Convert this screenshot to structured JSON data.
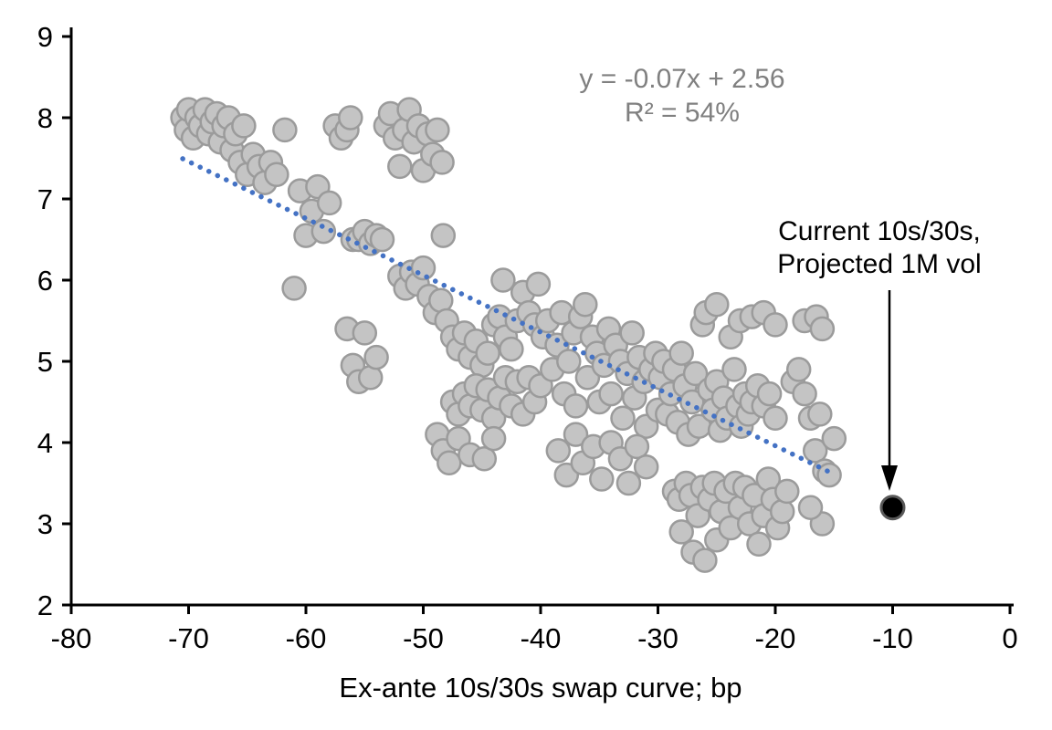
{
  "chart_data": {
    "type": "scatter",
    "title": "",
    "xlabel": "Ex-ante 10s/30s swap curve; bp",
    "ylabel": "",
    "xlim": [
      -80,
      0
    ],
    "ylim": [
      2,
      9
    ],
    "xticks": [
      -80,
      -70,
      -60,
      -50,
      -40,
      -30,
      -20,
      -10,
      0
    ],
    "yticks": [
      2,
      3,
      4,
      5,
      6,
      7,
      8,
      9
    ],
    "grid": false,
    "legend": "none",
    "equation": "y = -0.07x + 2.56",
    "r_squared": "R² = 54%",
    "highlight_label_line1": "Current 10s/30s,",
    "highlight_label_line2": "Projected 1M vol",
    "highlight_point": {
      "x": -10,
      "y": 3.2
    },
    "trendline": {
      "slope": -0.07,
      "intercept": 2.56,
      "x_start": -70.5,
      "x_end": -15,
      "style": "dotted",
      "color": "#4472C4"
    },
    "point_fill": "#C4C4C4",
    "point_stroke": "#9B9B9B",
    "highlight_fill": "#000000",
    "highlight_stroke": "#595959",
    "points": [
      [
        -70.5,
        8.0
      ],
      [
        -70.2,
        7.85
      ],
      [
        -70,
        8.1
      ],
      [
        -69.6,
        7.75
      ],
      [
        -69.3,
        8.0
      ],
      [
        -69,
        7.9
      ],
      [
        -68.6,
        8.1
      ],
      [
        -68.3,
        7.8
      ],
      [
        -68,
        7.95
      ],
      [
        -67.6,
        8.05
      ],
      [
        -67.3,
        7.7
      ],
      [
        -67,
        7.9
      ],
      [
        -66.6,
        8.0
      ],
      [
        -66.3,
        7.6
      ],
      [
        -66,
        7.8
      ],
      [
        -65.6,
        7.45
      ],
      [
        -65.3,
        7.9
      ],
      [
        -65,
        7.3
      ],
      [
        -64.5,
        7.55
      ],
      [
        -64,
        7.4
      ],
      [
        -63.5,
        7.2
      ],
      [
        -63,
        7.45
      ],
      [
        -62.5,
        7.3
      ],
      [
        -61.8,
        7.85
      ],
      [
        -61,
        5.9
      ],
      [
        -60.5,
        7.1
      ],
      [
        -60,
        6.55
      ],
      [
        -59.5,
        6.85
      ],
      [
        -59,
        7.15
      ],
      [
        -58.5,
        6.6
      ],
      [
        -58,
        6.95
      ],
      [
        -57.5,
        7.9
      ],
      [
        -57,
        7.75
      ],
      [
        -56.5,
        7.85
      ],
      [
        -56.2,
        8.0
      ],
      [
        -56,
        6.5
      ],
      [
        -53.2,
        7.9
      ],
      [
        -52.8,
        8.05
      ],
      [
        -52.4,
        7.75
      ],
      [
        -52,
        7.4
      ],
      [
        -51.6,
        7.85
      ],
      [
        -51.2,
        8.1
      ],
      [
        -50.8,
        7.7
      ],
      [
        -50.4,
        7.9
      ],
      [
        -50,
        7.35
      ],
      [
        -49.6,
        7.8
      ],
      [
        -49.2,
        7.55
      ],
      [
        -48.8,
        7.85
      ],
      [
        -48.4,
        7.45
      ],
      [
        -55.5,
        6.5
      ],
      [
        -55,
        6.6
      ],
      [
        -54.5,
        6.45
      ],
      [
        -54,
        6.55
      ],
      [
        -53.5,
        6.5
      ],
      [
        -52,
        6.05
      ],
      [
        -51.5,
        5.9
      ],
      [
        -51,
        6.1
      ],
      [
        -50.5,
        5.95
      ],
      [
        -50,
        6.15
      ],
      [
        -49.5,
        5.8
      ],
      [
        -49,
        5.6
      ],
      [
        -48.5,
        5.75
      ],
      [
        -48,
        5.5
      ],
      [
        -48.3,
        6.55
      ],
      [
        -56.5,
        5.4
      ],
      [
        -56,
        4.95
      ],
      [
        -55.5,
        4.75
      ],
      [
        -55,
        5.35
      ],
      [
        -54.5,
        4.8
      ],
      [
        -54,
        5.05
      ],
      [
        -47.5,
        5.3
      ],
      [
        -47,
        5.15
      ],
      [
        -46.5,
        5.35
      ],
      [
        -46,
        5.05
      ],
      [
        -45.5,
        5.25
      ],
      [
        -45,
        4.95
      ],
      [
        -44.5,
        5.1
      ],
      [
        -44,
        5.45
      ],
      [
        -43.5,
        5.55
      ],
      [
        -43.2,
        6.0
      ],
      [
        -43,
        5.3
      ],
      [
        -42.5,
        5.15
      ],
      [
        -42,
        5.5
      ],
      [
        -41.5,
        5.85
      ],
      [
        -41,
        5.6
      ],
      [
        -40.5,
        5.45
      ],
      [
        -40.2,
        5.95
      ],
      [
        -47.5,
        4.5
      ],
      [
        -47,
        4.35
      ],
      [
        -46.5,
        4.6
      ],
      [
        -46,
        4.45
      ],
      [
        -45.5,
        4.7
      ],
      [
        -45,
        4.4
      ],
      [
        -44.5,
        4.65
      ],
      [
        -44,
        4.3
      ],
      [
        -43.5,
        4.55
      ],
      [
        -43,
        4.8
      ],
      [
        -42.5,
        4.45
      ],
      [
        -42,
        4.75
      ],
      [
        -41.5,
        4.35
      ],
      [
        -41,
        4.8
      ],
      [
        -40.5,
        4.5
      ],
      [
        -40,
        4.7
      ],
      [
        -48.8,
        4.1
      ],
      [
        -48.3,
        3.9
      ],
      [
        -47.8,
        3.75
      ],
      [
        -47,
        4.05
      ],
      [
        -46,
        3.85
      ],
      [
        -44.8,
        3.8
      ],
      [
        -44,
        4.05
      ],
      [
        -39.8,
        5.3
      ],
      [
        -39.4,
        5.5
      ],
      [
        -39,
        4.9
      ],
      [
        -38.6,
        5.2
      ],
      [
        -38.2,
        5.6
      ],
      [
        -38,
        4.6
      ],
      [
        -37.6,
        5.0
      ],
      [
        -37.2,
        5.35
      ],
      [
        -37,
        4.45
      ],
      [
        -36.6,
        5.55
      ],
      [
        -36.2,
        5.7
      ],
      [
        -36,
        4.8
      ],
      [
        -35.6,
        5.3
      ],
      [
        -35.2,
        5.1
      ],
      [
        -35,
        4.5
      ],
      [
        -34.6,
        4.95
      ],
      [
        -34.2,
        5.4
      ],
      [
        -34,
        4.6
      ],
      [
        -33.6,
        5.2
      ],
      [
        -33.2,
        5.0
      ],
      [
        -33,
        4.3
      ],
      [
        -32.6,
        4.85
      ],
      [
        -32.2,
        5.35
      ],
      [
        -32,
        4.55
      ],
      [
        -31.6,
        5.05
      ],
      [
        -31.2,
        4.75
      ],
      [
        -31,
        4.2
      ],
      [
        -30.6,
        4.9
      ],
      [
        -30.2,
        5.1
      ],
      [
        -30,
        4.4
      ],
      [
        -38.5,
        3.9
      ],
      [
        -37.8,
        3.6
      ],
      [
        -37,
        4.1
      ],
      [
        -36.4,
        3.75
      ],
      [
        -35.5,
        3.95
      ],
      [
        -34.8,
        3.55
      ],
      [
        -34,
        4.0
      ],
      [
        -33.2,
        3.8
      ],
      [
        -32.5,
        3.5
      ],
      [
        -31.8,
        3.95
      ],
      [
        -31,
        3.7
      ],
      [
        -29.8,
        4.8
      ],
      [
        -29.5,
        5.0
      ],
      [
        -29.2,
        4.35
      ],
      [
        -28.9,
        4.6
      ],
      [
        -28.6,
        4.9
      ],
      [
        -28.3,
        4.25
      ],
      [
        -28,
        5.1
      ],
      [
        -27.7,
        4.7
      ],
      [
        -27.4,
        4.1
      ],
      [
        -27.1,
        4.5
      ],
      [
        -26.8,
        4.85
      ],
      [
        -26.5,
        4.2
      ],
      [
        -26.2,
        5.45
      ],
      [
        -25.9,
        5.6
      ],
      [
        -25.6,
        4.65
      ],
      [
        -25.3,
        4.4
      ],
      [
        -25,
        4.75
      ],
      [
        -24.7,
        4.15
      ],
      [
        -24.4,
        4.55
      ],
      [
        -24.1,
        4.3
      ],
      [
        -23.8,
        5.3
      ],
      [
        -23.5,
        4.9
      ],
      [
        -23.2,
        4.45
      ],
      [
        -22.9,
        4.2
      ],
      [
        -22.6,
        4.6
      ],
      [
        -22.3,
        4.35
      ],
      [
        -22,
        4.5
      ],
      [
        -21.5,
        4.7
      ],
      [
        -21,
        4.45
      ],
      [
        -20.5,
        4.6
      ],
      [
        -20,
        4.3
      ],
      [
        -25,
        5.7
      ],
      [
        -23,
        5.5
      ],
      [
        -22,
        5.55
      ],
      [
        -21,
        5.6
      ],
      [
        -20,
        5.45
      ],
      [
        -17.5,
        5.5
      ],
      [
        -16.5,
        5.55
      ],
      [
        -16,
        5.4
      ],
      [
        -28.6,
        3.4
      ],
      [
        -28.2,
        3.3
      ],
      [
        -28,
        2.9
      ],
      [
        -27.6,
        3.5
      ],
      [
        -27.2,
        3.35
      ],
      [
        -27,
        2.65
      ],
      [
        -26.6,
        3.1
      ],
      [
        -26.2,
        3.45
      ],
      [
        -26,
        2.55
      ],
      [
        -25.6,
        3.3
      ],
      [
        -25.2,
        3.5
      ],
      [
        -25,
        2.8
      ],
      [
        -24.6,
        3.15
      ],
      [
        -24.2,
        3.4
      ],
      [
        -23.8,
        2.95
      ],
      [
        -23.4,
        3.5
      ],
      [
        -23,
        3.2
      ],
      [
        -22.6,
        3.45
      ],
      [
        -22.2,
        3.0
      ],
      [
        -21.8,
        3.35
      ],
      [
        -21.4,
        2.75
      ],
      [
        -21,
        3.1
      ],
      [
        -20.6,
        3.55
      ],
      [
        -20.2,
        3.3
      ],
      [
        -19.8,
        2.95
      ],
      [
        -19.4,
        3.15
      ],
      [
        -19,
        3.4
      ],
      [
        -18.5,
        4.75
      ],
      [
        -18,
        4.9
      ],
      [
        -17.5,
        4.6
      ],
      [
        -17,
        4.3
      ],
      [
        -16.6,
        3.9
      ],
      [
        -16.2,
        4.35
      ],
      [
        -15.8,
        3.65
      ],
      [
        -15.4,
        3.6
      ],
      [
        -15,
        4.05
      ],
      [
        -16,
        3.0
      ],
      [
        -17,
        3.2
      ]
    ]
  }
}
